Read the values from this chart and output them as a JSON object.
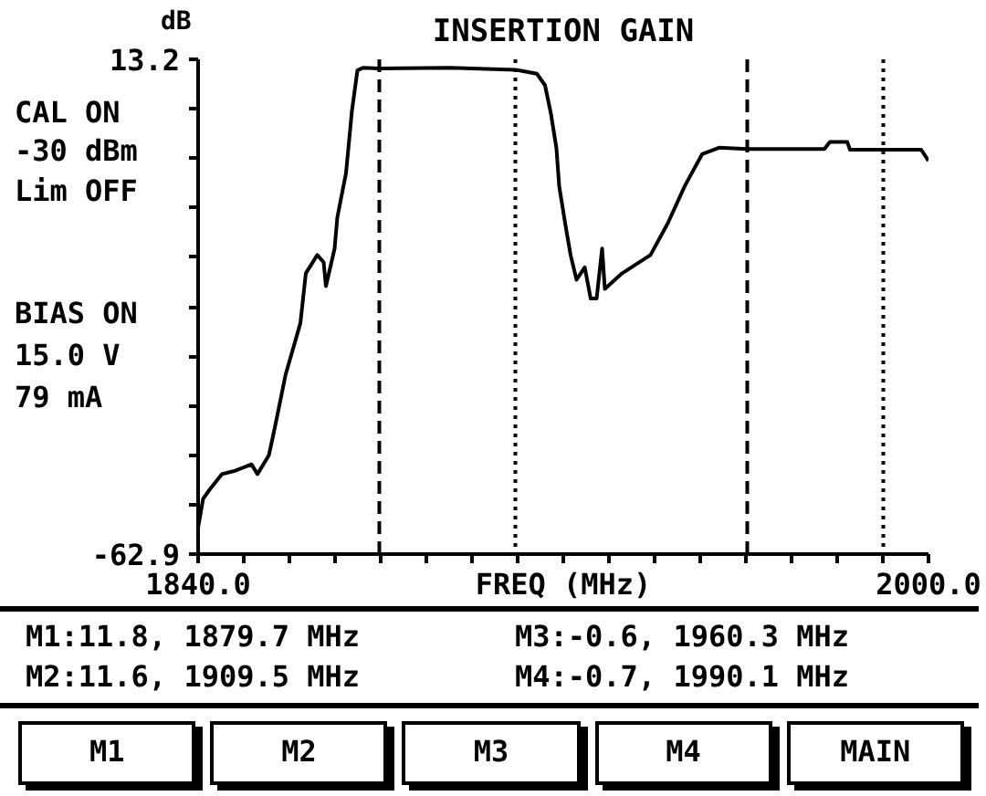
{
  "chart_data": {
    "type": "line",
    "title": "INSERTION GAIN",
    "xlabel": "FREQ (MHz)",
    "ylabel": "dB",
    "x": [
      1840.0,
      1841.1,
      1842.5,
      1845.2,
      1848.0,
      1851.7,
      1853.0,
      1855.5,
      1856.7,
      1859.2,
      1862.4,
      1863.6,
      1866.1,
      1867.5,
      1868.0,
      1869.9,
      1870.5,
      1872.4,
      1873.7,
      1874.9,
      1876.1,
      1879.7,
      1895.0,
      1909.5,
      1911.0,
      1914.2,
      1916.0,
      1917.3,
      1918.5,
      1919.1,
      1920.4,
      1921.6,
      1922.9,
      1924.7,
      1926.0,
      1927.3,
      1928.5,
      1929.1,
      1932.9,
      1939.1,
      1942.9,
      1946.6,
      1950.4,
      1954.1,
      1960.3,
      1970.0,
      1977.2,
      1978.4,
      1982.2,
      1982.8,
      1990.1,
      1998.4,
      2000.0
    ],
    "values": [
      -58.8,
      -54.4,
      -53.0,
      -50.6,
      -50.1,
      -49.1,
      -50.6,
      -47.7,
      -43.8,
      -35.2,
      -27.4,
      -19.7,
      -16.9,
      -18.0,
      -21.7,
      -15.9,
      -11.1,
      -4.3,
      5.3,
      11.5,
      11.9,
      11.8,
      11.9,
      11.6,
      11.4,
      11.0,
      9.2,
      4.8,
      -0.5,
      -6.3,
      -12.0,
      -16.9,
      -20.7,
      -18.8,
      -23.6,
      -23.6,
      -15.9,
      -22.1,
      -19.7,
      -16.9,
      -12.0,
      -6.3,
      -1.4,
      -0.4,
      -0.6,
      -0.6,
      -0.6,
      0.5,
      0.5,
      -0.7,
      -0.7,
      -0.7,
      -2.4
    ],
    "color": "#000000",
    "xlim": [
      1840,
      2000
    ],
    "ylim": [
      -62.9,
      13.2
    ],
    "xticks": [
      {
        "value": 1840,
        "label": "1840.0"
      },
      {
        "value": 1850,
        "label": null
      },
      {
        "value": 1860,
        "label": null
      },
      {
        "value": 1870,
        "label": null
      },
      {
        "value": 1880,
        "label": null
      },
      {
        "value": 1890,
        "label": null
      },
      {
        "value": 1900,
        "label": null
      },
      {
        "value": 1910,
        "label": null
      },
      {
        "value": 1920,
        "label": null
      },
      {
        "value": 1930,
        "label": null
      },
      {
        "value": 1940,
        "label": null
      },
      {
        "value": 1950,
        "label": null
      },
      {
        "value": 1960,
        "label": null
      },
      {
        "value": 1970,
        "label": null
      },
      {
        "value": 1980,
        "label": null
      },
      {
        "value": 1990,
        "label": null
      },
      {
        "value": 2000,
        "label": "2000.0"
      }
    ],
    "yticks": [
      13.2,
      {
        "value": 5.59,
        "label": null
      },
      {
        "value": -2.02,
        "label": null
      },
      {
        "value": -9.63,
        "label": null
      },
      {
        "value": -17.24,
        "label": null
      },
      {
        "value": -24.85,
        "label": null
      },
      {
        "value": -32.46,
        "label": null
      },
      {
        "value": -40.07,
        "label": null
      },
      {
        "value": -47.68,
        "label": null
      },
      {
        "value": -55.29,
        "label": null
      },
      -62.9
    ],
    "ref_lines": [
      {
        "axis": "x",
        "value": 1879.7,
        "line_style": "dashed",
        "color": "#000000"
      },
      {
        "axis": "x",
        "value": 1909.5,
        "line_style": "dotted",
        "color": "#000000"
      },
      {
        "axis": "x",
        "value": 1960.3,
        "line_style": "dashed",
        "color": "#000000"
      },
      {
        "axis": "x",
        "value": 1990.1,
        "line_style": "dotted",
        "color": "#000000"
      }
    ],
    "annotations": [
      "CAL ON",
      "-30 dBm",
      "Lim OFF",
      "BIAS ON",
      "15.0 V",
      "79 mA",
      "M1:11.8, 1879.7 MHz",
      "M3:-0.6, 1960.3 MHz",
      "M2:11.6, 1909.5 MHz",
      "M4:-0.7, 1990.1 MHz",
      "M1",
      "M2",
      "M3",
      "M4",
      "MAIN"
    ]
  }
}
